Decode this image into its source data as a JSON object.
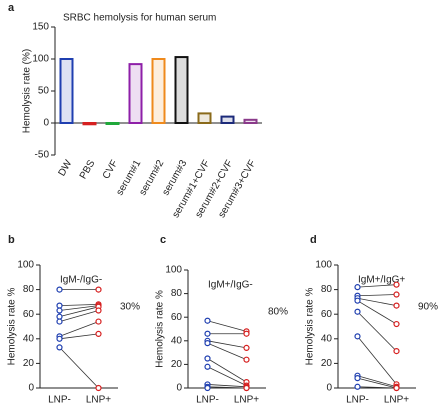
{
  "chart_data": [
    {
      "type": "bar",
      "panel": "a",
      "title": "SRBC hemolysis for human serum",
      "y_label": "Hemolysis rate (%)",
      "categories": [
        "DW",
        "PBS",
        "CVF",
        "serum#1",
        "serum#2",
        "serum#3",
        "serum#1+CVF",
        "serum#2+CVF",
        "serum#3+CVF"
      ],
      "values": [
        100,
        -2,
        -1,
        92,
        100,
        103,
        15,
        10,
        5
      ],
      "colors": [
        "#1f3fb0",
        "#d62020",
        "#1fa83a",
        "#8e1fa8",
        "#ef8a1c",
        "#111111",
        "#8a6a1a",
        "#1c2a7a",
        "#8a3a8a"
      ],
      "ylim": [
        -50,
        150
      ],
      "yticks": [
        -50,
        0,
        50,
        100,
        150
      ]
    },
    {
      "type": "paired",
      "panel": "b",
      "y_label": "Hemolysis rate %",
      "annotations": [
        "IgM-/IgG-",
        "30%"
      ],
      "categories": [
        "LNP-",
        "LNP+"
      ],
      "point_colors": [
        "#1f3fb0",
        "#d62020"
      ],
      "series": [
        {
          "values": [
            80,
            80
          ]
        },
        {
          "values": [
            67,
            68
          ]
        },
        {
          "values": [
            63,
            67
          ]
        },
        {
          "values": [
            58,
            66
          ]
        },
        {
          "values": [
            54,
            63
          ]
        },
        {
          "values": [
            42,
            54
          ]
        },
        {
          "values": [
            40,
            44
          ]
        },
        {
          "values": [
            33,
            0
          ]
        }
      ],
      "ylim": [
        0,
        100
      ],
      "yticks": [
        0,
        20,
        40,
        60,
        80,
        100
      ]
    },
    {
      "type": "paired",
      "panel": "c",
      "y_label": "Hemolysis rate %",
      "annotations": [
        "IgM+/IgG-",
        "80%"
      ],
      "categories": [
        "LNP-",
        "LNP+"
      ],
      "point_colors": [
        "#1f3fb0",
        "#d62020"
      ],
      "series": [
        {
          "values": [
            57,
            48
          ]
        },
        {
          "values": [
            46,
            46
          ]
        },
        {
          "values": [
            40,
            34
          ]
        },
        {
          "values": [
            38,
            24
          ]
        },
        {
          "values": [
            25,
            5
          ]
        },
        {
          "values": [
            18,
            2
          ]
        },
        {
          "values": [
            3,
            1
          ]
        },
        {
          "values": [
            1,
            0
          ]
        },
        {
          "values": [
            0,
            0
          ]
        }
      ],
      "ylim": [
        0,
        100
      ],
      "yticks": [
        0,
        20,
        40,
        60,
        80,
        100
      ]
    },
    {
      "type": "paired",
      "panel": "d",
      "y_label": "Hemolysis rate %",
      "annotations": [
        "IgM+/IgG+",
        "90%"
      ],
      "categories": [
        "LNP-",
        "LNP+"
      ],
      "point_colors": [
        "#1f3fb0",
        "#d62020"
      ],
      "series": [
        {
          "values": [
            82,
            84
          ]
        },
        {
          "values": [
            75,
            76
          ]
        },
        {
          "values": [
            73,
            67
          ]
        },
        {
          "values": [
            71,
            52
          ]
        },
        {
          "values": [
            62,
            30
          ]
        },
        {
          "values": [
            42,
            3
          ]
        },
        {
          "values": [
            10,
            1
          ]
        },
        {
          "values": [
            8,
            0
          ]
        },
        {
          "values": [
            1,
            0
          ]
        }
      ],
      "ylim": [
        0,
        100
      ],
      "yticks": [
        0,
        20,
        40,
        60,
        80,
        100
      ]
    }
  ]
}
